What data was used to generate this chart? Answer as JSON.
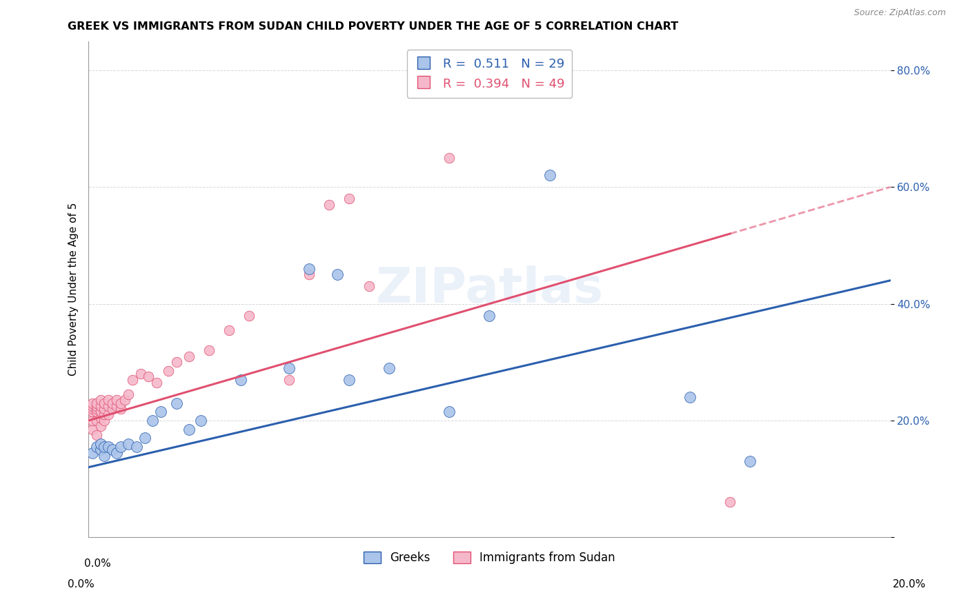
{
  "title": "GREEK VS IMMIGRANTS FROM SUDAN CHILD POVERTY UNDER THE AGE OF 5 CORRELATION CHART",
  "source": "Source: ZipAtlas.com",
  "ylabel": "Child Poverty Under the Age of 5",
  "y_ticks": [
    0.0,
    0.2,
    0.4,
    0.6,
    0.8
  ],
  "y_tick_labels": [
    "",
    "20.0%",
    "40.0%",
    "60.0%",
    "80.0%"
  ],
  "xlim": [
    0.0,
    0.2
  ],
  "ylim": [
    0.0,
    0.85
  ],
  "legend_r_blue": "0.511",
  "legend_n_blue": "29",
  "legend_r_pink": "0.394",
  "legend_n_pink": "49",
  "legend_label_blue": "Greeks",
  "legend_label_pink": "Immigrants from Sudan",
  "blue_color": "#aac4ea",
  "pink_color": "#f5b8ca",
  "trendline_blue_color": "#2b5fad",
  "trendline_pink_color": "#e05070",
  "watermark": "ZIPatlas",
  "blue_x": [
    0.001,
    0.002,
    0.003,
    0.003,
    0.004,
    0.004,
    0.005,
    0.006,
    0.007,
    0.008,
    0.01,
    0.012,
    0.014,
    0.016,
    0.018,
    0.022,
    0.025,
    0.028,
    0.038,
    0.05,
    0.055,
    0.062,
    0.065,
    0.075,
    0.09,
    0.1,
    0.115,
    0.15,
    0.165
  ],
  "blue_y": [
    0.145,
    0.155,
    0.15,
    0.16,
    0.14,
    0.155,
    0.155,
    0.15,
    0.145,
    0.155,
    0.16,
    0.155,
    0.17,
    0.2,
    0.215,
    0.23,
    0.185,
    0.2,
    0.27,
    0.29,
    0.46,
    0.45,
    0.27,
    0.29,
    0.215,
    0.38,
    0.62,
    0.24,
    0.13
  ],
  "pink_x": [
    0.001,
    0.001,
    0.001,
    0.001,
    0.001,
    0.001,
    0.002,
    0.002,
    0.002,
    0.002,
    0.002,
    0.002,
    0.003,
    0.003,
    0.003,
    0.003,
    0.003,
    0.004,
    0.004,
    0.004,
    0.004,
    0.005,
    0.005,
    0.005,
    0.006,
    0.006,
    0.007,
    0.007,
    0.008,
    0.008,
    0.009,
    0.01,
    0.011,
    0.013,
    0.015,
    0.017,
    0.02,
    0.022,
    0.025,
    0.03,
    0.035,
    0.04,
    0.05,
    0.055,
    0.06,
    0.065,
    0.07,
    0.09,
    0.16
  ],
  "pink_y": [
    0.185,
    0.2,
    0.215,
    0.22,
    0.225,
    0.23,
    0.175,
    0.2,
    0.215,
    0.22,
    0.225,
    0.23,
    0.19,
    0.205,
    0.215,
    0.225,
    0.235,
    0.2,
    0.21,
    0.22,
    0.23,
    0.21,
    0.225,
    0.235,
    0.22,
    0.23,
    0.225,
    0.235,
    0.22,
    0.23,
    0.235,
    0.245,
    0.27,
    0.28,
    0.275,
    0.265,
    0.285,
    0.3,
    0.31,
    0.32,
    0.355,
    0.38,
    0.27,
    0.45,
    0.57,
    0.58,
    0.43,
    0.65,
    0.06
  ],
  "trendline_pink_solid_end": 0.16,
  "trendline_pink_dash_end": 0.2
}
